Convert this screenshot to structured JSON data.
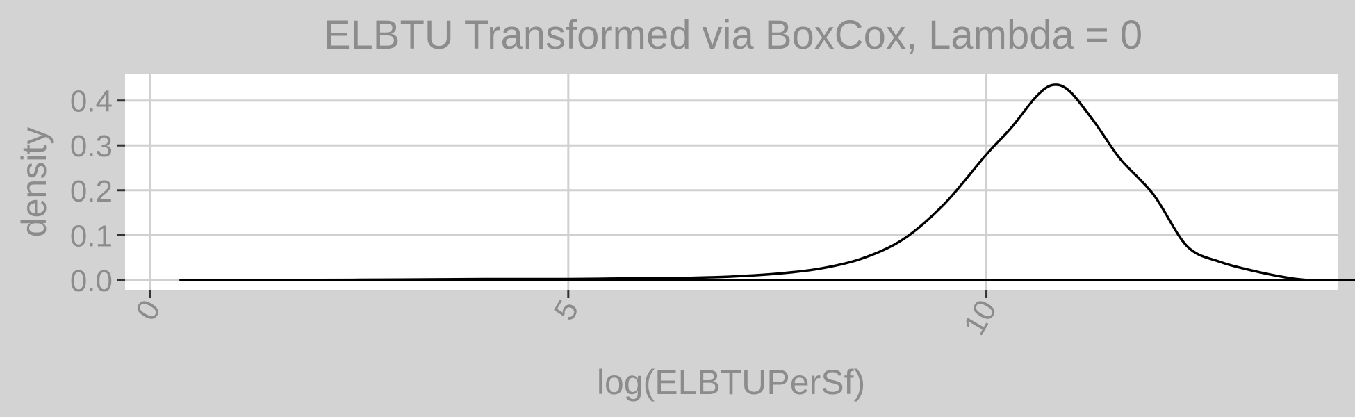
{
  "chart_data": {
    "type": "line",
    "title": "ELBTU Transformed via BoxCox, Lambda = 0",
    "xlabel": "log(ELBTUPerSf)",
    "ylabel": "density",
    "xlim": [
      -0.3,
      14.2
    ],
    "ylim": [
      -0.022,
      0.46
    ],
    "x_ticks": [
      0,
      5,
      10
    ],
    "x_tick_labels": [
      "0",
      "5",
      "10"
    ],
    "y_ticks": [
      0.0,
      0.1,
      0.2,
      0.3,
      0.4
    ],
    "y_tick_labels": [
      "0.0",
      "0.1",
      "0.2",
      "0.3",
      "0.4"
    ],
    "grid": true,
    "series": [
      {
        "color": "#000000",
        "x": [
          0.35,
          1.0,
          2.0,
          3.0,
          4.0,
          5.0,
          5.5,
          6.0,
          6.5,
          7.0,
          7.5,
          8.0,
          8.5,
          9.0,
          9.5,
          10.0,
          10.3,
          10.6,
          10.8,
          11.0,
          11.3,
          11.6,
          12.0,
          12.4,
          12.8,
          13.2,
          13.6,
          13.82,
          13.82,
          0.35
        ],
        "y": [
          0.0,
          0.0,
          0.0,
          0.001,
          0.002,
          0.002,
          0.003,
          0.004,
          0.005,
          0.008,
          0.014,
          0.025,
          0.047,
          0.09,
          0.17,
          0.28,
          0.34,
          0.41,
          0.435,
          0.42,
          0.35,
          0.27,
          0.19,
          0.075,
          0.04,
          0.02,
          0.005,
          0.0,
          0.0,
          0.0
        ]
      }
    ]
  }
}
